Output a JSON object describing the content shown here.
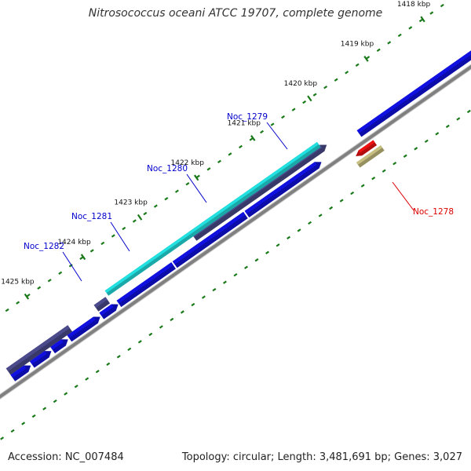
{
  "title": "Nitrosococcus oceani ATCC 19707, complete genome",
  "footer": {
    "accession": "Accession: NC_007484",
    "summary": "Topology: circular; Length: 3,481,691 bp; Genes: 3,027"
  },
  "ticks": [
    {
      "label": "1418 kbp"
    },
    {
      "label": "1419 kbp"
    },
    {
      "label": "1420 kbp"
    },
    {
      "label": "1421 kbp"
    },
    {
      "label": "1422 kbp"
    },
    {
      "label": "1423 kbp"
    },
    {
      "label": "1424 kbp"
    },
    {
      "label": "1425 kbp"
    }
  ],
  "gene_labels": [
    {
      "text": "Noc_1279",
      "color": "#0000cc"
    },
    {
      "text": "Noc_1280",
      "color": "#0000cc"
    },
    {
      "text": "Noc_1281",
      "color": "#0000cc"
    },
    {
      "text": "Noc_1282",
      "color": "#0000cc"
    },
    {
      "text": "Noc_1278",
      "color": "#dd0000"
    }
  ],
  "colors": {
    "cds": "#1010e0",
    "gene": "#4b4b8c",
    "rna": "#22e0e0",
    "red_feature": "#ee1111",
    "khaki_feature": "#c8c080",
    "backbone": "#808080",
    "dots": "#1a7a1a"
  }
}
